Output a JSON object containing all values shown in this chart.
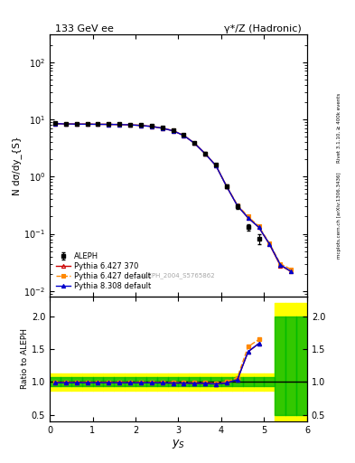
{
  "title_left": "133 GeV ee",
  "title_right": "γ*/Z (Hadronic)",
  "xlabel": "y_{S}",
  "ylabel_main": "N dσ/dy_{S}",
  "ylabel_ratio": "Ratio to ALEPH",
  "watermark": "ALEPH_2004_S5765862",
  "right_label": "mcplots.cern.ch [arXiv:1306.3436]      Rivet 3.1.10, ≥ 400k events",
  "x_data": [
    0.125,
    0.375,
    0.625,
    0.875,
    1.125,
    1.375,
    1.625,
    1.875,
    2.125,
    2.375,
    2.625,
    2.875,
    3.125,
    3.375,
    3.625,
    3.875,
    4.125,
    4.375,
    4.625,
    4.875,
    5.125,
    5.375,
    5.625
  ],
  "aleph_y": [
    8.5,
    8.4,
    8.35,
    8.3,
    8.28,
    8.25,
    8.2,
    8.1,
    7.9,
    7.6,
    7.1,
    6.4,
    5.3,
    3.9,
    2.55,
    1.6,
    0.68,
    0.3,
    0.13,
    0.082,
    null,
    null,
    null
  ],
  "aleph_yerr": [
    0.25,
    0.25,
    0.25,
    0.25,
    0.25,
    0.25,
    0.25,
    0.25,
    0.25,
    0.25,
    0.22,
    0.2,
    0.18,
    0.15,
    0.1,
    0.07,
    0.04,
    0.025,
    0.015,
    0.015,
    null,
    null,
    null
  ],
  "py6370_y": [
    8.4,
    8.3,
    8.25,
    8.22,
    8.18,
    8.15,
    8.1,
    8.0,
    7.8,
    7.5,
    7.0,
    6.3,
    5.22,
    3.82,
    2.5,
    1.55,
    0.67,
    0.31,
    0.19,
    0.13,
    0.065,
    0.028,
    0.022
  ],
  "py6def_y": [
    8.45,
    8.35,
    8.3,
    8.27,
    8.23,
    8.2,
    8.15,
    8.05,
    7.85,
    7.55,
    7.05,
    6.35,
    5.25,
    3.85,
    2.52,
    1.57,
    0.68,
    0.32,
    0.2,
    0.135,
    0.068,
    0.03,
    0.024
  ],
  "py8def_y": [
    8.4,
    8.3,
    8.25,
    8.22,
    8.18,
    8.15,
    8.1,
    8.0,
    7.8,
    7.5,
    7.0,
    6.3,
    5.22,
    3.82,
    2.5,
    1.55,
    0.67,
    0.31,
    0.19,
    0.13,
    0.066,
    0.029,
    0.022
  ],
  "ratio_py6370": [
    0.99,
    0.99,
    0.99,
    0.99,
    0.99,
    0.99,
    0.99,
    0.988,
    0.988,
    0.987,
    0.986,
    0.984,
    0.983,
    0.98,
    0.978,
    0.969,
    0.985,
    1.033,
    1.46,
    1.585,
    null,
    null,
    null
  ],
  "ratio_py6def": [
    0.994,
    0.994,
    0.994,
    0.996,
    0.995,
    0.994,
    0.994,
    0.994,
    0.994,
    0.993,
    0.993,
    0.992,
    0.991,
    0.987,
    0.988,
    0.981,
    1.0,
    1.067,
    1.538,
    1.646,
    null,
    null,
    null
  ],
  "ratio_py8def": [
    0.988,
    0.988,
    0.988,
    0.988,
    0.988,
    0.988,
    0.988,
    0.986,
    0.987,
    0.987,
    0.985,
    0.984,
    0.983,
    0.979,
    0.98,
    0.969,
    0.985,
    1.033,
    1.462,
    1.585,
    null,
    null,
    null
  ],
  "band_x_edges": [
    0.0,
    0.25,
    0.5,
    0.75,
    1.0,
    1.25,
    1.5,
    1.75,
    2.0,
    2.25,
    2.5,
    2.75,
    3.0,
    3.25,
    3.5,
    3.75,
    4.0,
    4.25,
    4.5,
    4.75,
    5.0,
    5.25,
    5.5,
    5.75,
    6.0
  ],
  "green_lo": [
    0.93,
    0.93,
    0.93,
    0.93,
    0.93,
    0.93,
    0.93,
    0.93,
    0.93,
    0.93,
    0.93,
    0.93,
    0.93,
    0.93,
    0.93,
    0.93,
    0.93,
    0.93,
    0.93,
    0.93,
    0.93,
    0.5,
    0.5,
    0.5
  ],
  "green_hi": [
    1.07,
    1.07,
    1.07,
    1.07,
    1.07,
    1.07,
    1.07,
    1.07,
    1.07,
    1.07,
    1.07,
    1.07,
    1.07,
    1.07,
    1.07,
    1.07,
    1.07,
    1.07,
    1.07,
    1.07,
    1.07,
    2.0,
    2.0,
    2.0
  ],
  "yellow_lo": [
    0.87,
    0.87,
    0.87,
    0.87,
    0.87,
    0.87,
    0.87,
    0.87,
    0.87,
    0.87,
    0.87,
    0.87,
    0.87,
    0.87,
    0.87,
    0.87,
    0.87,
    0.87,
    0.87,
    0.87,
    0.87,
    0.4,
    0.4,
    0.4
  ],
  "yellow_hi": [
    1.13,
    1.13,
    1.13,
    1.13,
    1.13,
    1.13,
    1.13,
    1.13,
    1.13,
    1.13,
    1.13,
    1.13,
    1.13,
    1.13,
    1.13,
    1.13,
    1.13,
    1.13,
    1.13,
    1.13,
    1.13,
    2.2,
    2.2,
    2.2
  ],
  "color_aleph": "#000000",
  "color_py6370": "#cc0000",
  "color_py6def": "#ff8800",
  "color_py8def": "#0000cc",
  "color_green": "#00bb00",
  "color_yellow": "#ffff00",
  "xlim": [
    0,
    6
  ],
  "ylim_main": [
    0.008,
    300
  ],
  "ylim_ratio": [
    0.4,
    2.3
  ],
  "ratio_yticks": [
    0.5,
    1.0,
    1.5,
    2.0
  ]
}
